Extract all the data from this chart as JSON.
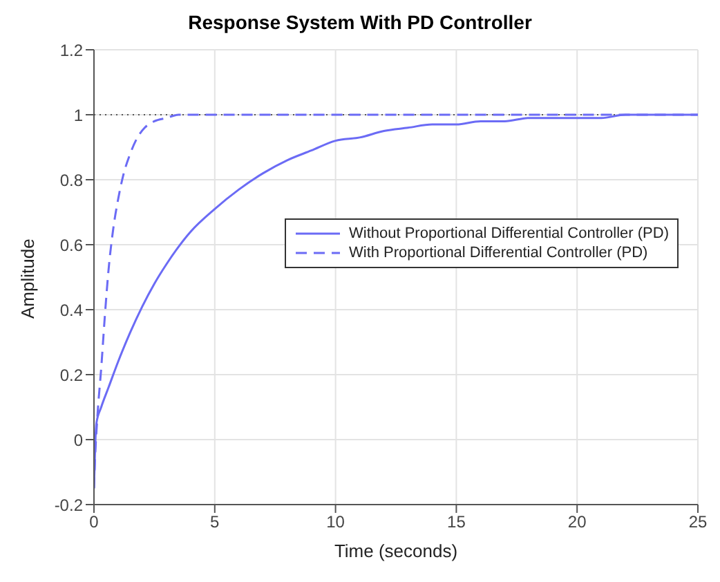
{
  "chart_data": {
    "type": "line",
    "title": "Response System With PD Controller",
    "xlabel": "Time  (seconds)",
    "ylabel": "Amplitude",
    "xlim": [
      0,
      25
    ],
    "xticks": [
      0,
      5,
      10,
      15,
      20,
      25
    ],
    "ylim": [
      -0.2,
      1.2
    ],
    "yticks": [
      -0.2,
      0,
      0.2,
      0.4,
      0.6,
      0.8,
      1,
      1.2
    ],
    "grid": true,
    "legend": "right",
    "marker": "none",
    "ref_lines": [
      {
        "axis": "y",
        "value": 1,
        "color": "#555555",
        "line_style": "dotted"
      }
    ],
    "series": [
      {
        "name": "Without Proportional Differential Controller (PD)",
        "color": "#6b6bf5",
        "line_style": "solid",
        "x": [
          0,
          0.05,
          0.1,
          0.3,
          0.6,
          1,
          1.5,
          2,
          2.5,
          3,
          4,
          5,
          6,
          7,
          8,
          9,
          10,
          11,
          12,
          13,
          14,
          15,
          16,
          17,
          18,
          19,
          20,
          21,
          22,
          23,
          24,
          25
        ],
        "values": [
          -0.15,
          -0.02,
          0.05,
          0.1,
          0.16,
          0.24,
          0.33,
          0.41,
          0.48,
          0.54,
          0.64,
          0.71,
          0.77,
          0.82,
          0.86,
          0.89,
          0.92,
          0.93,
          0.95,
          0.96,
          0.97,
          0.97,
          0.98,
          0.98,
          0.99,
          0.99,
          0.99,
          0.99,
          1,
          1,
          1,
          1
        ]
      },
      {
        "name": "With Proportional Differential Controller (PD)",
        "color": "#6b6bf5",
        "line_style": "dashed",
        "x": [
          0,
          0.05,
          0.15,
          0.3,
          0.45,
          0.6,
          0.8,
          1,
          1.2,
          1.5,
          1.8,
          2.1,
          2.5,
          3,
          3.5,
          4,
          6,
          10,
          15,
          20,
          25
        ],
        "values": [
          -0.15,
          -0.05,
          0.08,
          0.22,
          0.38,
          0.52,
          0.65,
          0.74,
          0.81,
          0.88,
          0.93,
          0.96,
          0.98,
          0.99,
          1,
          1,
          1,
          1,
          1,
          1,
          1
        ]
      }
    ]
  }
}
